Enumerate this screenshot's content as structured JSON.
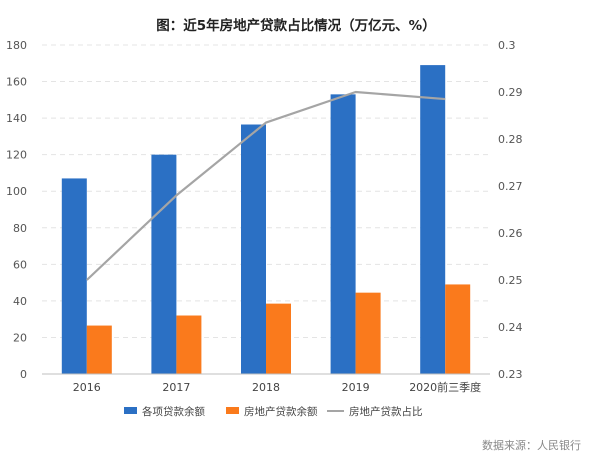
{
  "chart_data": {
    "type": "bar",
    "title": "图：近5年房地产贷款占比情况（万亿元、%）",
    "categories": [
      "2016",
      "2017",
      "2018",
      "2019",
      "2020前三季度"
    ],
    "series": [
      {
        "name": "各项贷款余额",
        "type": "bar",
        "axis": "left",
        "color": "#2b70c4",
        "values": [
          107,
          120,
          136.5,
          153,
          169
        ]
      },
      {
        "name": "房地产贷款余额",
        "type": "bar",
        "axis": "left",
        "color": "#fa7a1c",
        "values": [
          26.5,
          32,
          38.5,
          44.5,
          49
        ]
      },
      {
        "name": "房地产贷款占比",
        "type": "line",
        "axis": "right",
        "color": "#a5a5a5",
        "values": [
          0.25,
          0.268,
          0.2835,
          0.29,
          0.2885
        ]
      }
    ],
    "ylim_left": [
      0,
      180
    ],
    "yticks_left": [
      "0",
      "20",
      "40",
      "60",
      "80",
      "100",
      "120",
      "140",
      "160",
      "180"
    ],
    "ylim_right": [
      0.23,
      0.3
    ],
    "yticks_right": [
      "0.23",
      "0.24",
      "0.25",
      "0.26",
      "0.27",
      "0.28",
      "0.29",
      "0.3"
    ],
    "grid": true,
    "legend_position": "bottom"
  },
  "source_note": "数据来源：人民银行"
}
